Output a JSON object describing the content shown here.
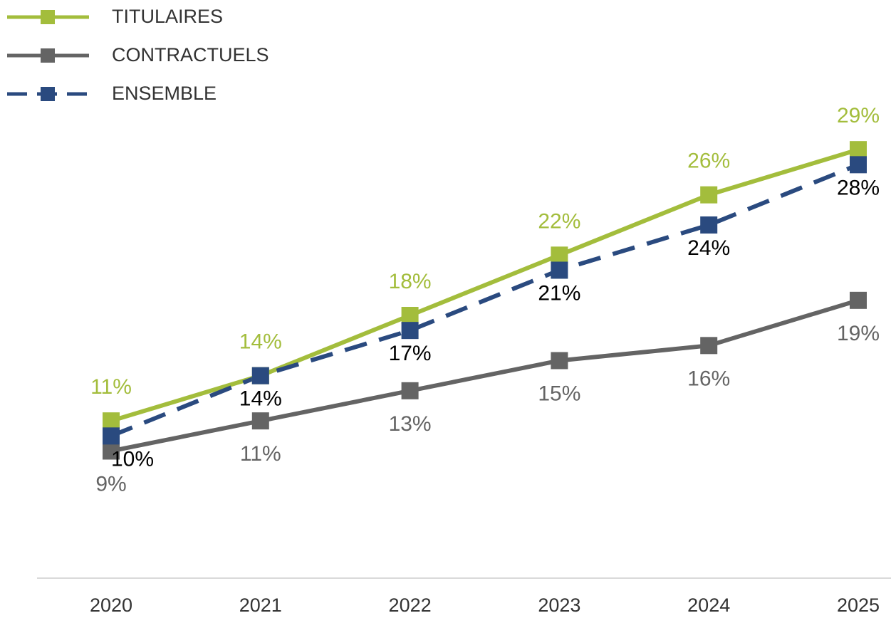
{
  "chart_data": {
    "type": "line",
    "categories": [
      "2020",
      "2021",
      "2022",
      "2023",
      "2024",
      "2025"
    ],
    "series": [
      {
        "name": "TITULAIRES",
        "color": "#a3bd3c",
        "label_color": "#a3bd3c",
        "line_style": "solid",
        "values": [
          11,
          14,
          18,
          22,
          26,
          29
        ],
        "value_labels": [
          "11%",
          "14%",
          "18%",
          "22%",
          "26%",
          "29%"
        ],
        "label_position": "above"
      },
      {
        "name": "CONTRACTUELS",
        "color": "#646464",
        "label_color": "#646464",
        "line_style": "solid",
        "values": [
          9,
          11,
          13,
          15,
          16,
          19
        ],
        "value_labels": [
          "9%",
          "11%",
          "13%",
          "15%",
          "16%",
          "19%"
        ],
        "label_position": "below"
      },
      {
        "name": "ENSEMBLE",
        "color": "#2a4a7f",
        "label_color": "#000000",
        "line_style": "dashed",
        "values": [
          10,
          14,
          17,
          21,
          24,
          28
        ],
        "value_labels": [
          "10%",
          "14%",
          "17%",
          "21%",
          "24%",
          "28%"
        ],
        "label_position": "below"
      }
    ],
    "ylim": [
      0,
      30
    ],
    "legend": "top-left"
  }
}
